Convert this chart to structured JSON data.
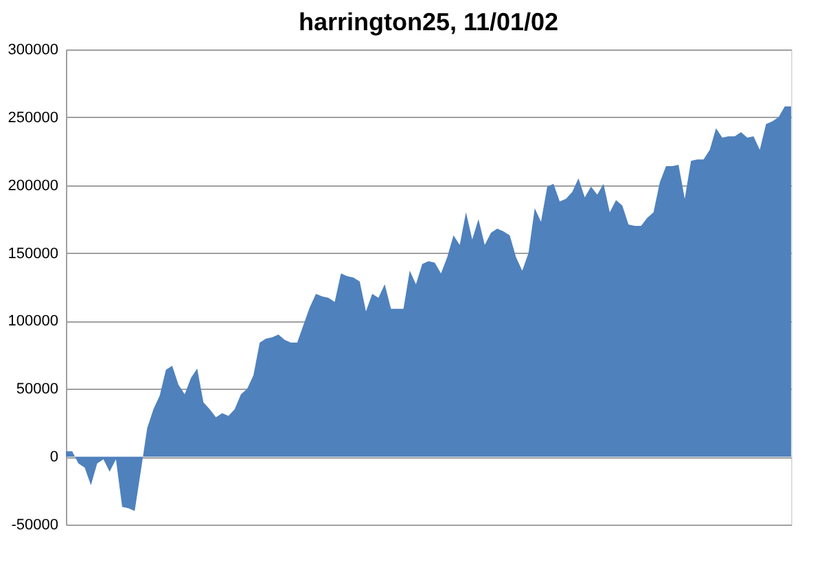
{
  "chart_data": {
    "type": "area",
    "title": "harrington25, 11/01/02",
    "categories": [
      null,
      null,
      null,
      null,
      null,
      null,
      null,
      null,
      null,
      null,
      null,
      null,
      null,
      null,
      null,
      null,
      null,
      null,
      null,
      null,
      null,
      null,
      null,
      null,
      null,
      null,
      null,
      null,
      null,
      null,
      null,
      null,
      null,
      null,
      null,
      null,
      null,
      null,
      null,
      null,
      null,
      null,
      null,
      null,
      null,
      null,
      null,
      null,
      null,
      null,
      null,
      null,
      null,
      null,
      null,
      null,
      null,
      null,
      null,
      null,
      null,
      null,
      null,
      null,
      null,
      null,
      null,
      null,
      null,
      null,
      null,
      null,
      null,
      null,
      null,
      null,
      null,
      null,
      null,
      null,
      null,
      null,
      null,
      null,
      null,
      null,
      null,
      null,
      null,
      null,
      null,
      null,
      null,
      null,
      null,
      null,
      null,
      null,
      null,
      null,
      null,
      null,
      null,
      null,
      null,
      null,
      null,
      null,
      null,
      null,
      null,
      null,
      null,
      null,
      null,
      null,
      null
    ],
    "series": [
      {
        "color": "#4f81bd",
        "values": [
          4000,
          4000,
          -5000,
          -8000,
          -21000,
          -5000,
          -2000,
          -11000,
          -2000,
          -37000,
          -38000,
          -40000,
          -10000,
          21000,
          35000,
          45000,
          64000,
          67000,
          53000,
          46000,
          58000,
          65000,
          40000,
          35000,
          29000,
          32000,
          30000,
          35000,
          46000,
          50000,
          60000,
          84000,
          87000,
          88000,
          90000,
          86000,
          84000,
          84000,
          97000,
          110000,
          120000,
          118000,
          117000,
          114000,
          135000,
          133000,
          132000,
          129000,
          107000,
          120000,
          117000,
          127000,
          109000,
          109000,
          109000,
          137000,
          127000,
          142000,
          144000,
          143000,
          135000,
          147000,
          163000,
          156000,
          180000,
          160000,
          175000,
          156000,
          165000,
          168000,
          166000,
          163000,
          147000,
          137000,
          150000,
          183000,
          173000,
          199000,
          201000,
          188000,
          190000,
          195000,
          205000,
          191000,
          199000,
          193000,
          201000,
          180000,
          189000,
          185000,
          171000,
          170000,
          170000,
          176000,
          180000,
          202000,
          214000,
          214000,
          215000,
          190000,
          218000,
          219000,
          219000,
          226000,
          242000,
          235000,
          236000,
          236000,
          239000,
          235000,
          236000,
          226000,
          245000,
          247000,
          250000,
          258000,
          258000
        ]
      }
    ],
    "ylim": [
      -50000,
      300000
    ],
    "yticks": [
      -50000,
      0,
      50000,
      100000,
      150000,
      200000,
      250000,
      300000
    ],
    "grid": "y"
  }
}
